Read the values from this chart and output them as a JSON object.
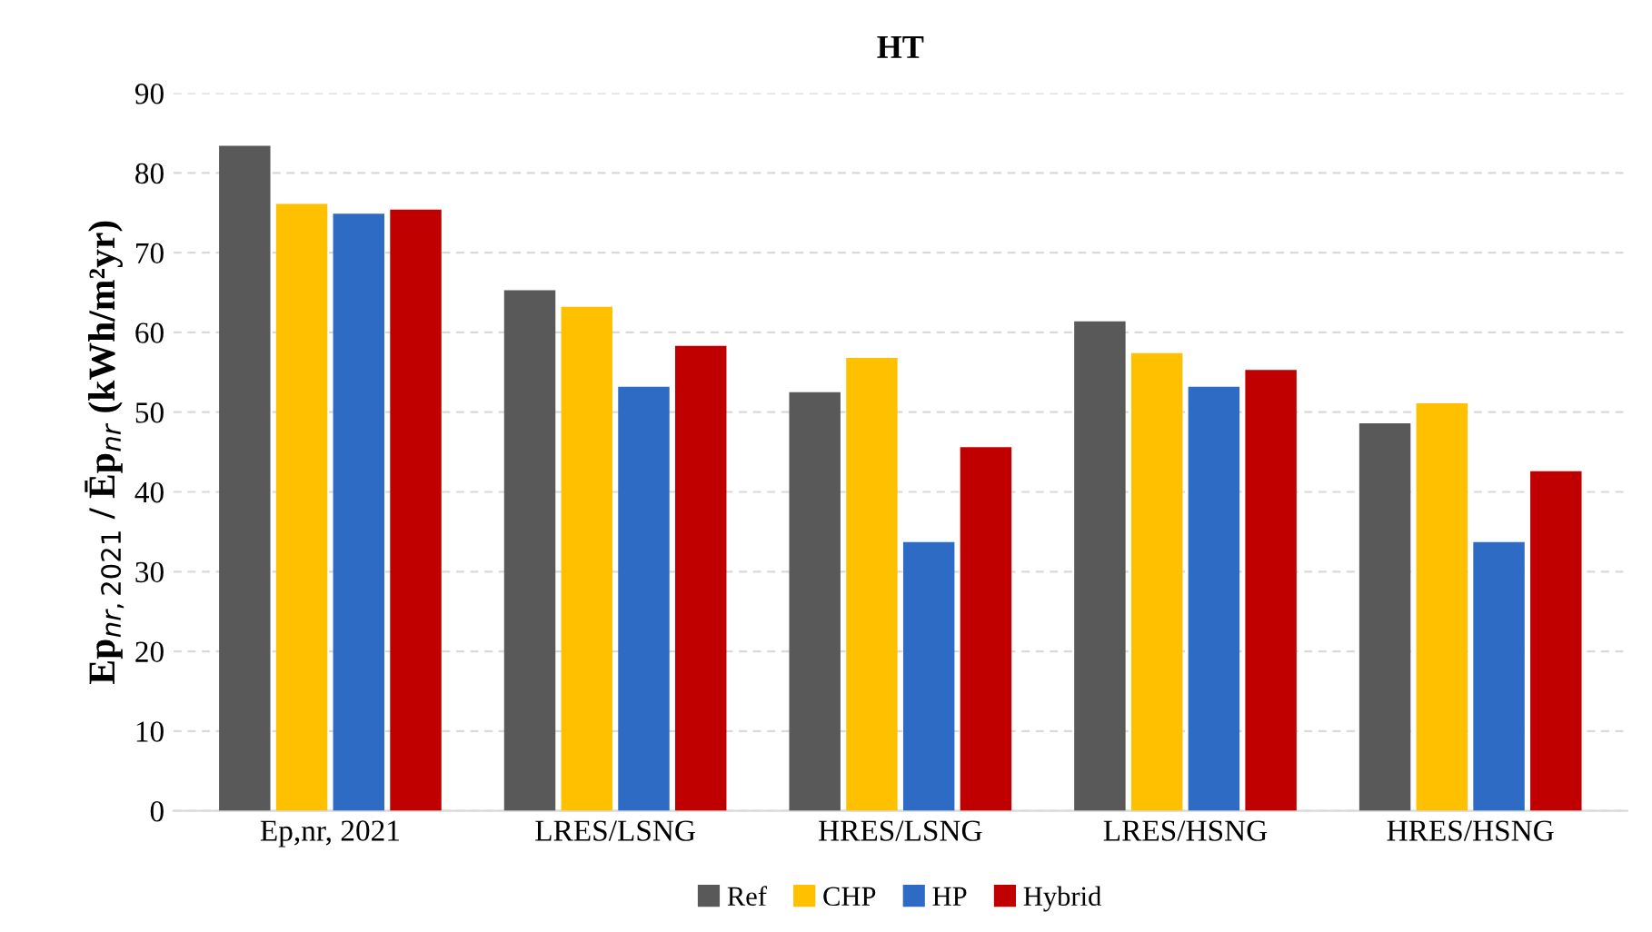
{
  "chart_data": {
    "type": "bar",
    "title": "HT",
    "ylabel": "Ep$_{nr,2021}$ / Ēp$_{nr}$ (kWh/m²yr)",
    "categories": [
      "Ep,nr, 2021",
      "LRES/LSNG",
      "HRES/LSNG",
      "LRES/HSNG",
      "HRES/HSNG"
    ],
    "series": [
      {
        "name": "Ref",
        "color": "#595959",
        "values": [
          83.4,
          65.3,
          52.5,
          61.4,
          48.6
        ]
      },
      {
        "name": "CHP",
        "color": "#ffc000",
        "values": [
          76.1,
          63.2,
          56.8,
          57.4,
          51.1
        ]
      },
      {
        "name": "HP",
        "color": "#2e6bc4",
        "values": [
          74.9,
          53.2,
          33.7,
          53.2,
          33.7
        ]
      },
      {
        "name": "Hybrid",
        "color": "#c00000",
        "values": [
          75.4,
          58.3,
          45.6,
          55.3,
          42.6
        ]
      }
    ],
    "ylim": [
      0,
      90
    ],
    "yticks": [
      0,
      10,
      20,
      30,
      40,
      50,
      60,
      70,
      80,
      90
    ],
    "grid": "y",
    "legend": "bottom"
  }
}
